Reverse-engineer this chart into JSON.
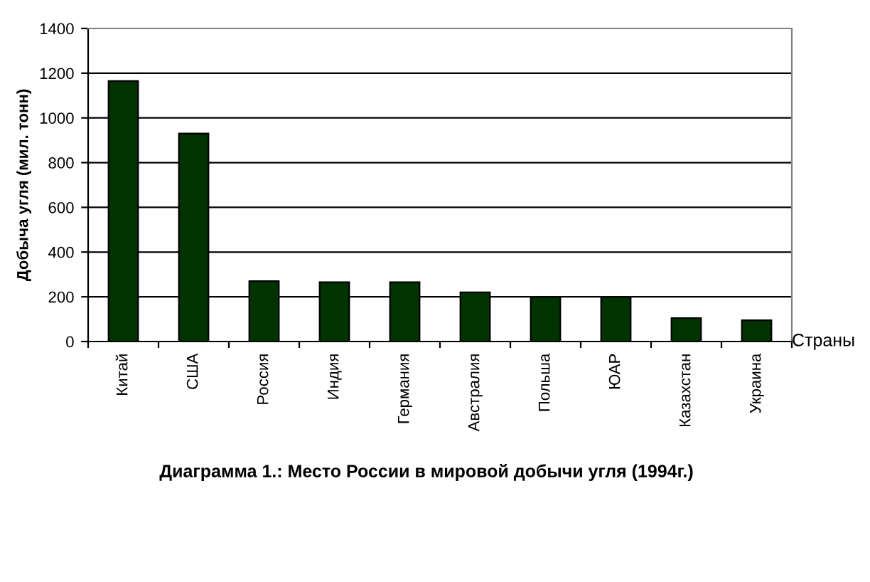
{
  "chart_data": {
    "type": "bar",
    "title": "Диаграмма 1.: Место России в мировой добычи угля (1994г.)",
    "xlabel": "Страны",
    "ylabel": "Добыча угля (мил. тонн)",
    "categories": [
      "Китай",
      "США",
      "Россия",
      "Индия",
      "Германия",
      "Австралия",
      "Польша",
      "ЮАР",
      "Казахстан",
      "Украина"
    ],
    "values": [
      1165,
      930,
      270,
      265,
      265,
      220,
      200,
      200,
      105,
      95
    ],
    "color": "#003300",
    "ylim": [
      0,
      1400
    ],
    "yticks": [
      0,
      200,
      400,
      600,
      800,
      1000,
      1200,
      1400
    ],
    "grid": "y",
    "legend": false
  }
}
